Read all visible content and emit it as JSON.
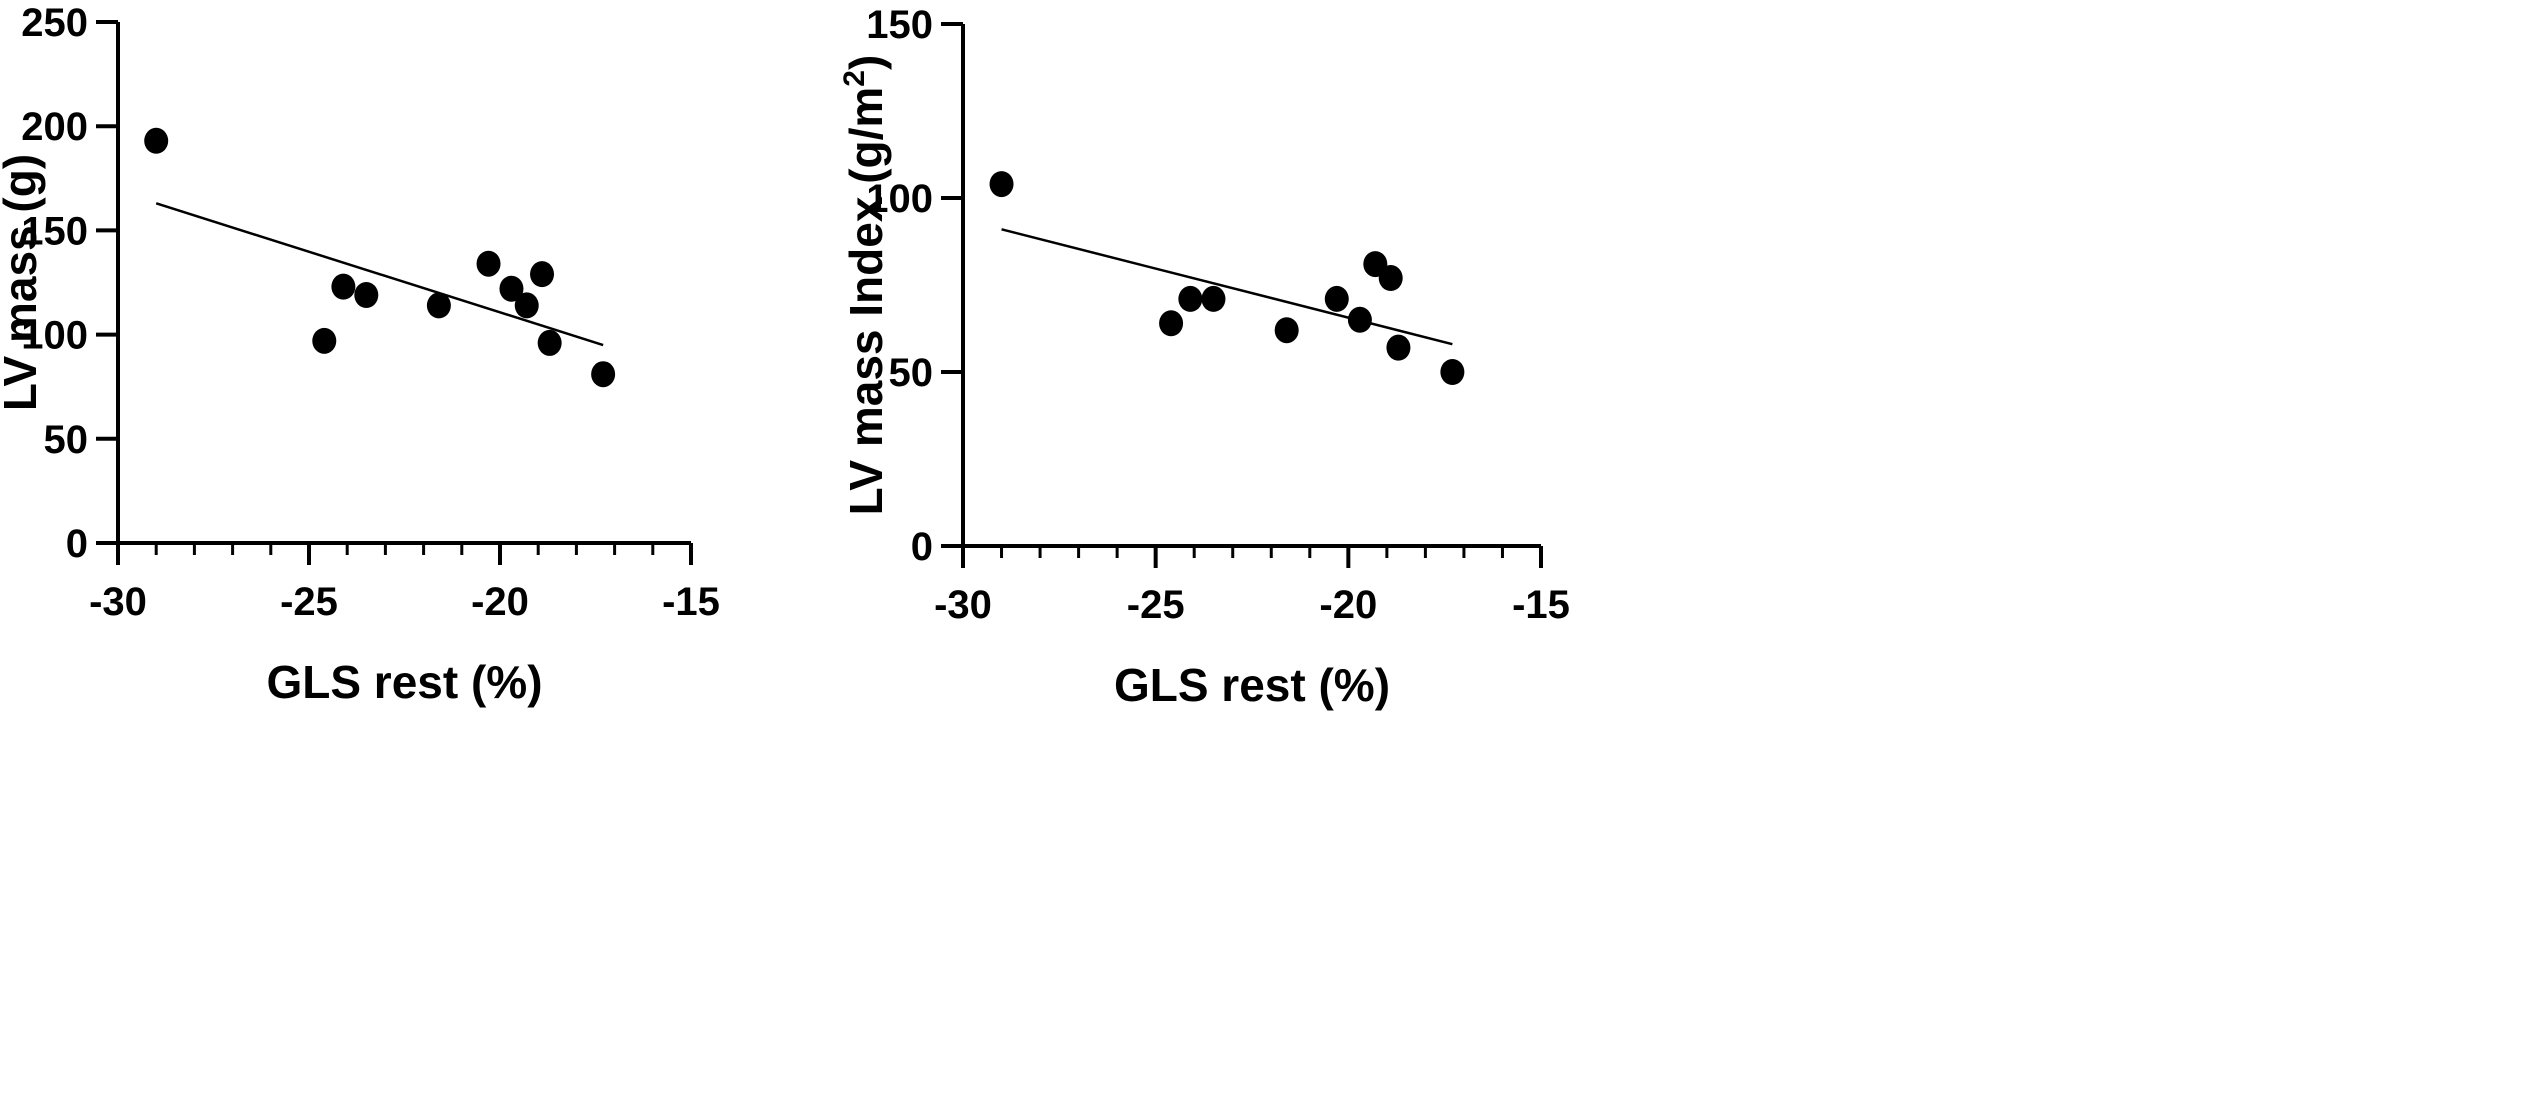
{
  "chart_data": [
    {
      "type": "scatter",
      "title": "",
      "xlabel": "GLS rest  (%)",
      "ylabel": "LV mass (g)",
      "ylabel_superscript": "",
      "ylabel_suffix": "",
      "xlim": [
        -30,
        -15
      ],
      "ylim": [
        0,
        250
      ],
      "xticks": [
        -30,
        -25,
        -20,
        -15
      ],
      "yticks": [
        0,
        50,
        100,
        150,
        200,
        250
      ],
      "x_minor_step": 1,
      "points": [
        {
          "x": -29,
          "y": 193
        },
        {
          "x": -24.6,
          "y": 97
        },
        {
          "x": -24.1,
          "y": 123
        },
        {
          "x": -23.5,
          "y": 119
        },
        {
          "x": -21.6,
          "y": 114
        },
        {
          "x": -20.3,
          "y": 134
        },
        {
          "x": -19.7,
          "y": 122
        },
        {
          "x": -19.3,
          "y": 114
        },
        {
          "x": -18.9,
          "y": 129
        },
        {
          "x": -18.7,
          "y": 96
        },
        {
          "x": -17.3,
          "y": 81
        }
      ],
      "trendline": {
        "x0": -29,
        "y0": 163,
        "x1": -17.3,
        "y1": 95
      }
    },
    {
      "type": "scatter",
      "title": "",
      "xlabel": "GLS rest  (%)",
      "ylabel": "LV mass Index (g/m",
      "ylabel_superscript": "2",
      "ylabel_suffix": ")",
      "xlim": [
        -30,
        -15
      ],
      "ylim": [
        0,
        150
      ],
      "xticks": [
        -30,
        -25,
        -20,
        -15
      ],
      "yticks": [
        0,
        50,
        100,
        150
      ],
      "x_minor_step": 1,
      "points": [
        {
          "x": -29,
          "y": 104
        },
        {
          "x": -24.6,
          "y": 64
        },
        {
          "x": -24.1,
          "y": 71
        },
        {
          "x": -23.5,
          "y": 71
        },
        {
          "x": -21.6,
          "y": 62
        },
        {
          "x": -20.3,
          "y": 71
        },
        {
          "x": -19.7,
          "y": 65
        },
        {
          "x": -19.3,
          "y": 81
        },
        {
          "x": -18.9,
          "y": 77
        },
        {
          "x": -18.7,
          "y": 57
        },
        {
          "x": -17.3,
          "y": 50
        }
      ],
      "trendline": {
        "x0": -29,
        "y0": 91,
        "x1": -17.3,
        "y1": 58
      }
    }
  ]
}
